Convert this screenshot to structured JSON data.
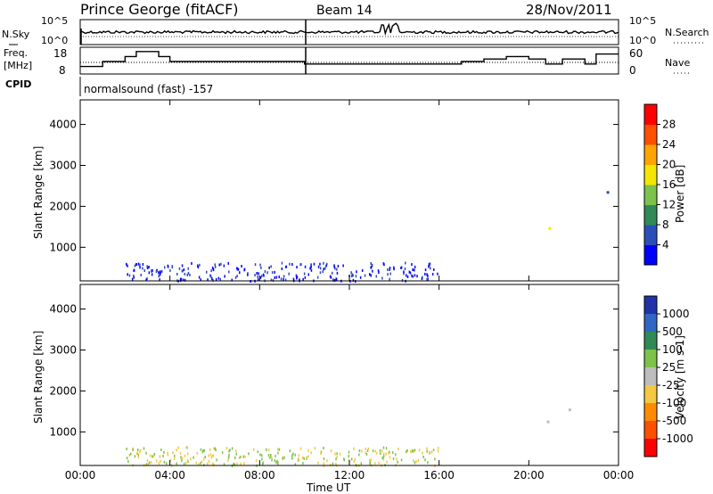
{
  "header": {
    "title": "Prince George (fitACF)",
    "beam": "Beam 14",
    "date": "28/Nov/2011"
  },
  "summary_panels": {
    "nsky_label": "N.Sky",
    "nsearch_label": "N.Search",
    "freq_label_line1": "Freq.",
    "freq_label_line2": "[MHz]",
    "nave_label": "Nave",
    "cpid_label": "CPID",
    "cpid_text": "normalsound (fast) -157",
    "left_top_ticks": [
      "10^5",
      "10^0"
    ],
    "right_top_ticks": [
      "10^5",
      "10^0"
    ],
    "left_freq_ticks": [
      "18",
      "8"
    ],
    "right_nave_ticks": [
      "60",
      "0"
    ]
  },
  "chart_data": [
    {
      "type": "line",
      "name": "summary_freq",
      "x": [
        "00:00",
        "01:00",
        "02:00",
        "02:30",
        "03:30",
        "04:00",
        "10:00",
        "16:00",
        "16:30",
        "17:00",
        "18:00",
        "19:00",
        "20:00",
        "20:45",
        "21:30",
        "22:30",
        "23:00",
        "24:00"
      ],
      "series": [
        {
          "name": "Freq.",
          "values": [
            11,
            13,
            15,
            17,
            15,
            13,
            12,
            12,
            12,
            13,
            14,
            15,
            14,
            12,
            14,
            12,
            16,
            16
          ]
        }
      ],
      "ylim": [
        8,
        18
      ]
    },
    {
      "type": "heatmap",
      "name": "power",
      "ylabel": "Slant Range [km]",
      "yticks": [
        "1000",
        "2000",
        "3000",
        "4000"
      ],
      "ylim": [
        180,
        4600
      ],
      "xlim": [
        "00:00",
        "24:00"
      ],
      "colorbar_label": "Power [dB]",
      "colorbar_ticks": [
        "4",
        "8",
        "12",
        "16",
        "20",
        "24",
        "28"
      ],
      "colorscale": [
        "#0000ff",
        "#2b4fb8",
        "#2f8a56",
        "#7dc24a",
        "#f5e600",
        "#ffa500",
        "#ff5000",
        "#ff0000"
      ]
    },
    {
      "type": "heatmap",
      "name": "velocity",
      "ylabel": "Slant Range [km]",
      "yticks": [
        "1000",
        "2000",
        "3000",
        "4000"
      ],
      "ylim": [
        180,
        4600
      ],
      "xlim": [
        "00:00",
        "24:00"
      ],
      "colorbar_label": "Velocity [m s-1]",
      "colorbar_ticks": [
        "1000",
        "500",
        "100",
        "25",
        "-25",
        "-100",
        "-500",
        "-1000"
      ],
      "colorscale": [
        "#2133a8",
        "#3066c4",
        "#2f8a56",
        "#7dc24a",
        "#bdbdbd",
        "#f5c842",
        "#ff8c00",
        "#ff5000",
        "#ff0000"
      ]
    }
  ],
  "axis": {
    "xticks": [
      "00:00",
      "04:00",
      "08:00",
      "12:00",
      "16:00",
      "20:00",
      "00:00"
    ],
    "xlabel": "Time UT"
  }
}
